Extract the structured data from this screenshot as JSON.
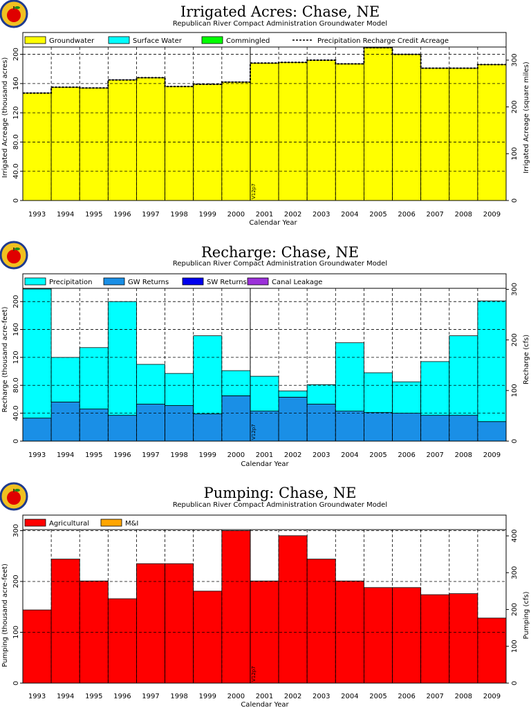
{
  "chart_data": [
    {
      "type": "bar",
      "title": "Irrigated Acres: Chase, NE",
      "subtitle": "Republican River Compact Administration Groundwater Model",
      "xlabel": "Calendar Year",
      "ylabel": "Irrigated Acreage (thousand acres)",
      "y2label": "Irrigated Acreage (square miles)",
      "categories": [
        "1993",
        "1994",
        "1995",
        "1996",
        "1997",
        "1998",
        "1999",
        "2000",
        "2001",
        "2002",
        "2003",
        "2004",
        "2005",
        "2006",
        "2007",
        "2008",
        "2009"
      ],
      "ylim": [
        0,
        210
      ],
      "yticks": [
        "0",
        "40.0",
        "80.0",
        "120",
        "160",
        "200"
      ],
      "y2lim": [
        0,
        328
      ],
      "y2ticks": [
        "0",
        "100",
        "200",
        "300"
      ],
      "grid": true,
      "legend_position": "top",
      "marker_label": "V12p7",
      "marker_year": "2001",
      "series": [
        {
          "name": "Groundwater",
          "color": "#ffff00",
          "values": [
            147,
            155,
            154,
            165,
            168,
            156,
            159,
            162,
            188,
            189,
            192,
            187,
            209,
            200,
            181,
            181,
            186
          ]
        },
        {
          "name": "Surface Water",
          "color": "#00ffff",
          "values": [
            0,
            0,
            0,
            0,
            0,
            0,
            0,
            0,
            0,
            0,
            0,
            0,
            0,
            0,
            0,
            0,
            0
          ]
        },
        {
          "name": "Commingled",
          "color": "#00ff00",
          "values": [
            0,
            0,
            0,
            0,
            0,
            0,
            0,
            0,
            0,
            0,
            0,
            0,
            0,
            0,
            0,
            0,
            0
          ]
        }
      ],
      "line_series": {
        "name": "Precipitation Recharge Credit Acreage",
        "values": [
          147,
          155,
          154,
          165,
          168,
          156,
          159,
          162,
          188,
          189,
          192,
          187,
          209,
          200,
          181,
          181,
          186
        ]
      }
    },
    {
      "type": "bar",
      "title": "Recharge: Chase, NE",
      "subtitle": "Republican River Compact Administration Groundwater Model",
      "xlabel": "Calendar Year",
      "ylabel": "Recharge (thousand acre-feet)",
      "y2label": "Recharge (cfs)",
      "categories": [
        "1993",
        "1994",
        "1995",
        "1996",
        "1997",
        "1998",
        "1999",
        "2000",
        "2001",
        "2002",
        "2003",
        "2004",
        "2005",
        "2006",
        "2007",
        "2008",
        "2009"
      ],
      "ylim": [
        0,
        219
      ],
      "yticks": [
        "0",
        "40.0",
        "80.0",
        "120",
        "160",
        "200"
      ],
      "y2lim": [
        0,
        302
      ],
      "y2ticks": [
        "0",
        "100",
        "200",
        "300"
      ],
      "grid": true,
      "legend_position": "top",
      "marker_label": "V12p7",
      "marker_year": "2001",
      "series": [
        {
          "name": "GW Returns",
          "color": "#1a8fe6",
          "values": [
            33,
            56,
            46,
            37,
            53,
            51,
            39,
            65,
            43,
            63,
            53,
            43,
            41,
            40,
            37,
            37,
            28
          ]
        },
        {
          "name": "Precipitation",
          "color": "#00ffff",
          "values": [
            185,
            64,
            88,
            163,
            57,
            46,
            112,
            36,
            50,
            9,
            28,
            98,
            57,
            45,
            77,
            114,
            173
          ]
        },
        {
          "name": "SW Returns",
          "color": "#0000ee",
          "values": [
            0,
            0,
            0,
            0,
            0,
            0,
            0,
            0,
            0,
            0,
            0,
            0,
            0,
            0,
            0,
            0,
            0
          ]
        },
        {
          "name": "Canal Leakage",
          "color": "#9b30d9",
          "values": [
            0,
            0,
            0,
            0,
            0,
            0,
            0,
            0,
            0,
            0,
            0,
            0,
            0,
            0,
            0,
            0,
            0
          ]
        }
      ],
      "legend_order": [
        "Precipitation",
        "GW Returns",
        "SW Returns",
        "Canal Leakage"
      ]
    },
    {
      "type": "bar",
      "title": "Pumping: Chase, NE",
      "subtitle": "Republican River Compact Administration Groundwater Model",
      "xlabel": "Calendar Year",
      "ylabel": "Pumping (thousand acre-feet)",
      "y2label": "Pumping (cfs)",
      "categories": [
        "1993",
        "1994",
        "1995",
        "1996",
        "1997",
        "1998",
        "1999",
        "2000",
        "2001",
        "2002",
        "2003",
        "2004",
        "2005",
        "2006",
        "2007",
        "2008",
        "2009"
      ],
      "ylim": [
        0,
        302
      ],
      "yticks": [
        "0",
        "100",
        "200",
        "300"
      ],
      "y2lim": [
        0,
        417
      ],
      "y2ticks": [
        "0",
        "100",
        "200",
        "300",
        "400"
      ],
      "grid": true,
      "legend_position": "top",
      "marker_label": "V12p7",
      "marker_year": "2001",
      "series": [
        {
          "name": "Agricultural",
          "color": "#ff0000",
          "values": [
            144,
            244,
            201,
            166,
            235,
            235,
            181,
            300,
            201,
            290,
            244,
            201,
            188,
            188,
            174,
            176,
            128
          ]
        },
        {
          "name": "M&I",
          "color": "#ffa500",
          "values": [
            0,
            0,
            0,
            0,
            0,
            0,
            0,
            0,
            0,
            0,
            0,
            0,
            0,
            0,
            0,
            0,
            0
          ]
        }
      ]
    }
  ]
}
